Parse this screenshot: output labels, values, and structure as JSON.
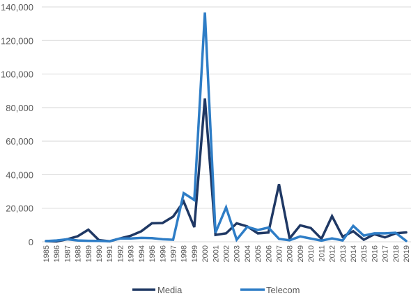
{
  "chart_data": {
    "type": "line",
    "title": "",
    "xlabel": "",
    "ylabel": "",
    "ylim": [
      0,
      140000
    ],
    "yticks": [
      0,
      20000,
      40000,
      60000,
      80000,
      100000,
      120000,
      140000
    ],
    "ytick_labels": [
      "0",
      "20,000",
      "40,000",
      "60,000",
      "80,000",
      "100,000",
      "120,000",
      "140,000"
    ],
    "grid": true,
    "legend_position": "bottom",
    "categories": [
      "1985",
      "1986",
      "1987",
      "1988",
      "1989",
      "1990",
      "1991",
      "1992",
      "1993",
      "1994",
      "1995",
      "1996",
      "1997",
      "1998",
      "1999",
      "2000",
      "2001",
      "2002",
      "2003",
      "2004",
      "2005",
      "2006",
      "2007",
      "2008",
      "2009",
      "2010",
      "2011",
      "2012",
      "2013",
      "2014",
      "2015",
      "2016",
      "2017",
      "2018",
      "2019"
    ],
    "series": [
      {
        "name": "Media",
        "color": "#1f3864",
        "values": [
          400,
          200,
          1500,
          3300,
          7200,
          1000,
          300,
          2000,
          3600,
          6300,
          11000,
          11200,
          15000,
          24000,
          8700,
          85500,
          4100,
          5000,
          11000,
          9200,
          5000,
          5500,
          34300,
          2000,
          9800,
          8200,
          1800,
          15300,
          3000,
          6300,
          1200,
          4500,
          2600,
          5000,
          5600
        ]
      },
      {
        "name": "Telecom",
        "color": "#2e7dc6",
        "values": [
          400,
          800,
          1500,
          800,
          600,
          500,
          300,
          2000,
          2000,
          2300,
          2200,
          1500,
          1200,
          29000,
          24900,
          136700,
          5400,
          20500,
          1200,
          8900,
          7000,
          8500,
          1700,
          900,
          3200,
          1900,
          700,
          2000,
          800,
          9500,
          3700,
          5000,
          5000,
          5400,
          500
        ]
      }
    ]
  }
}
